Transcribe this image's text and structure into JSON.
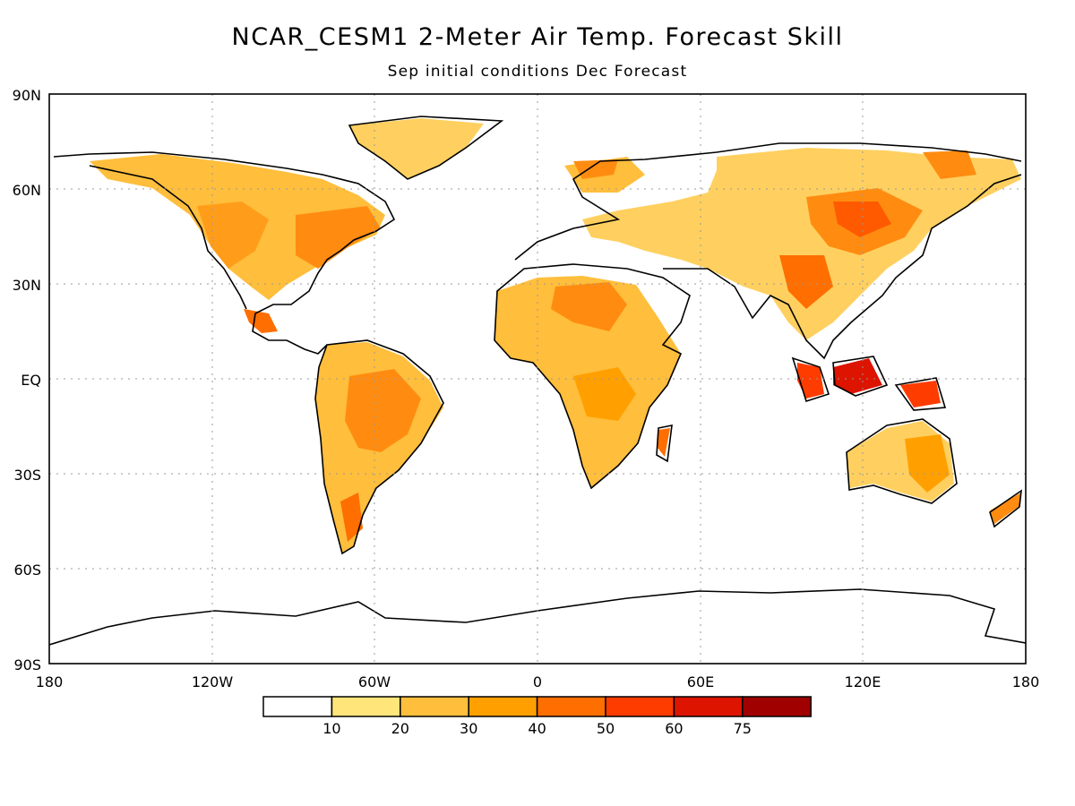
{
  "title": "NCAR_CESM1 2-Meter Air Temp. Forecast Skill",
  "subtitle": "Sep initial conditions  Dec Forecast",
  "map": {
    "projection": "equirectangular",
    "lon_range": [
      -180,
      180
    ],
    "lat_range": [
      -90,
      90
    ],
    "grid": true,
    "lat_labels": [
      "90N",
      "60N",
      "30N",
      "EQ",
      "30S",
      "60S",
      "90S"
    ],
    "lon_labels": [
      "180",
      "120W",
      "60W",
      "0",
      "60E",
      "120E",
      "180"
    ]
  },
  "colorbar": {
    "colors": [
      "#ffffff",
      "#ffe57a",
      "#ffbe3c",
      "#ffa000",
      "#ff6e00",
      "#ff3c00",
      "#dc1400",
      "#a00000"
    ],
    "labels": [
      "10",
      "20",
      "30",
      "40",
      "50",
      "60",
      "75"
    ],
    "bounds": [
      10,
      20,
      30,
      40,
      50,
      60,
      75
    ]
  }
}
